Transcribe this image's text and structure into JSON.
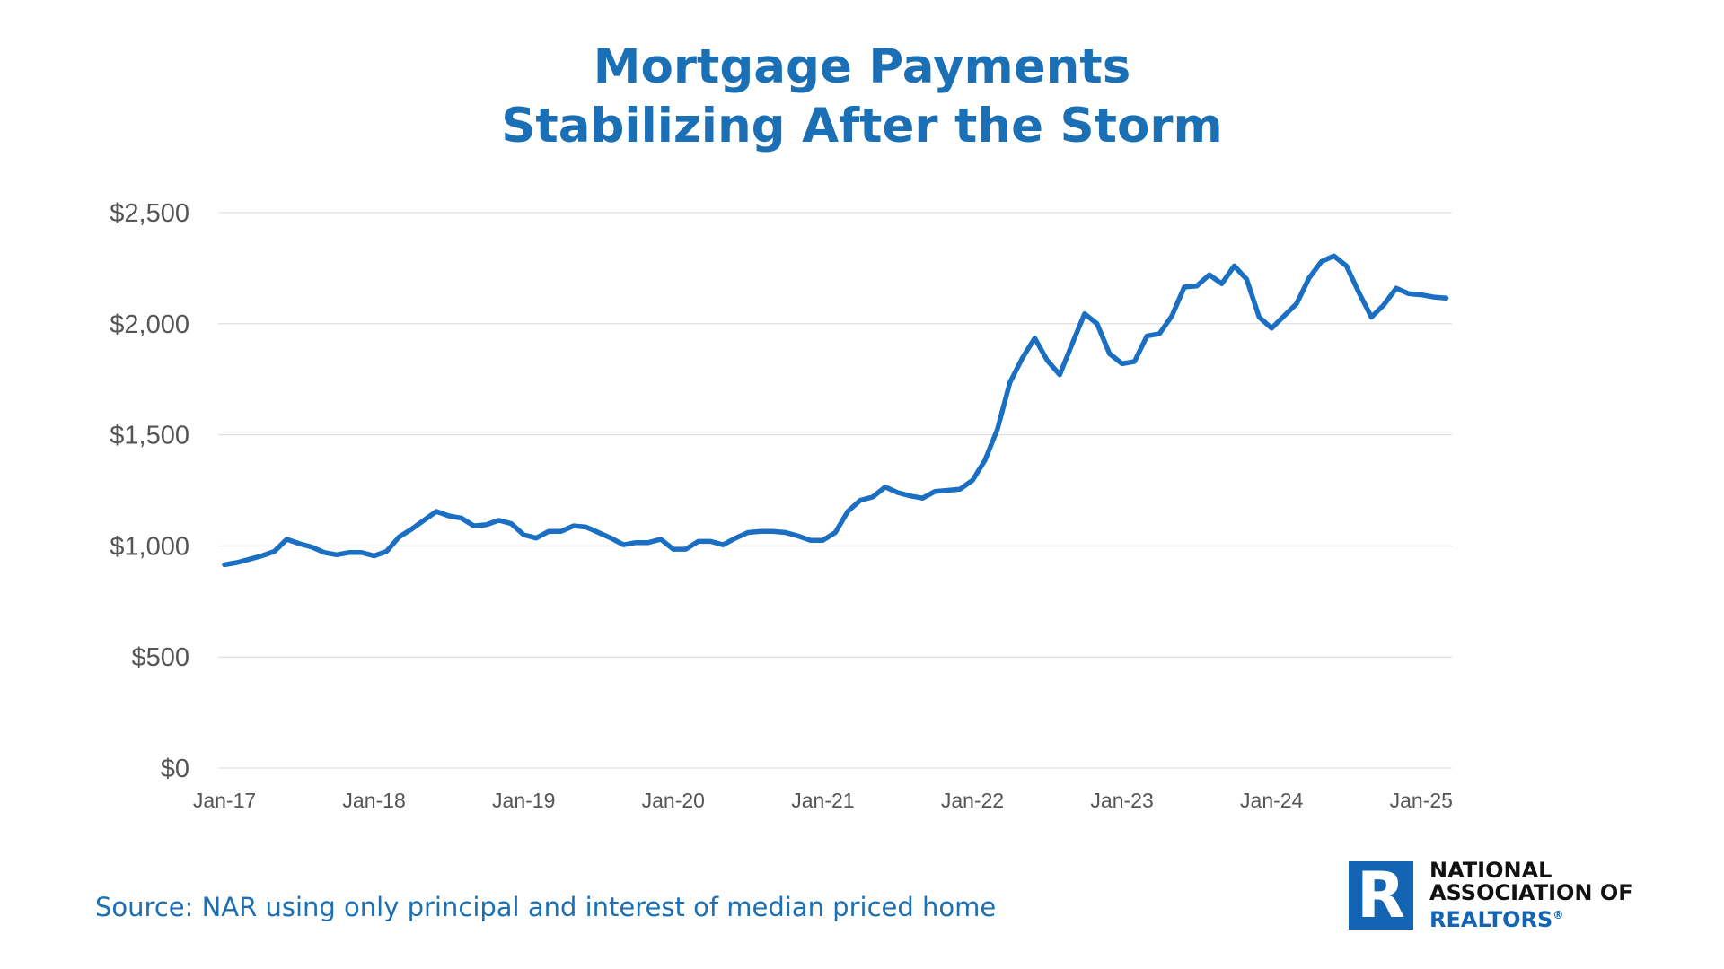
{
  "title": [
    "Mortgage Payments",
    "Stabilizing After the Storm"
  ],
  "source": "Source: NAR using only principal and interest of median priced home",
  "logo": {
    "line1": "NATIONAL",
    "line2": "ASSOCIATION OF",
    "line3": "REALTORS",
    "mark": "®"
  },
  "colors": {
    "accent": "#1b6fb5",
    "line": "#1a6fc2",
    "grid": "#d9d9d9",
    "tick": "#555555"
  },
  "chart_data": {
    "type": "line",
    "title": "Mortgage Payments Stabilizing After the Storm",
    "xlabel": "",
    "ylabel": "",
    "ylim": [
      0,
      2500
    ],
    "y_ticks": [
      "$0",
      "$500",
      "$1,000",
      "$1,500",
      "$2,000",
      "$2,500"
    ],
    "x_ticks": [
      "Jan-17",
      "Jan-18",
      "Jan-19",
      "Jan-20",
      "Jan-21",
      "Jan-22",
      "Jan-23",
      "Jan-24",
      "Jan-25"
    ],
    "grid": true,
    "series": [
      {
        "name": "",
        "start": "Jan-17",
        "frequency": "monthly",
        "values": [
          915,
          925,
          940,
          955,
          975,
          1030,
          1010,
          995,
          970,
          960,
          970,
          970,
          955,
          975,
          1040,
          1075,
          1115,
          1155,
          1135,
          1125,
          1090,
          1095,
          1115,
          1100,
          1050,
          1035,
          1065,
          1065,
          1090,
          1085,
          1060,
          1035,
          1005,
          1015,
          1015,
          1030,
          985,
          985,
          1020,
          1020,
          1005,
          1035,
          1060,
          1065,
          1065,
          1060,
          1045,
          1025,
          1025,
          1060,
          1155,
          1205,
          1220,
          1265,
          1240,
          1225,
          1215,
          1245,
          1250,
          1255,
          1295,
          1385,
          1525,
          1735,
          1845,
          1935,
          1835,
          1770,
          1910,
          2045,
          2000,
          1865,
          1820,
          1830,
          1945,
          1955,
          2035,
          2165,
          2170,
          2220,
          2180,
          2260,
          2200,
          2030,
          1980,
          2035,
          2090,
          2205,
          2280,
          2305,
          2260,
          2140,
          2030,
          2085,
          2160,
          2135,
          2130,
          2120,
          2115
        ]
      }
    ]
  }
}
